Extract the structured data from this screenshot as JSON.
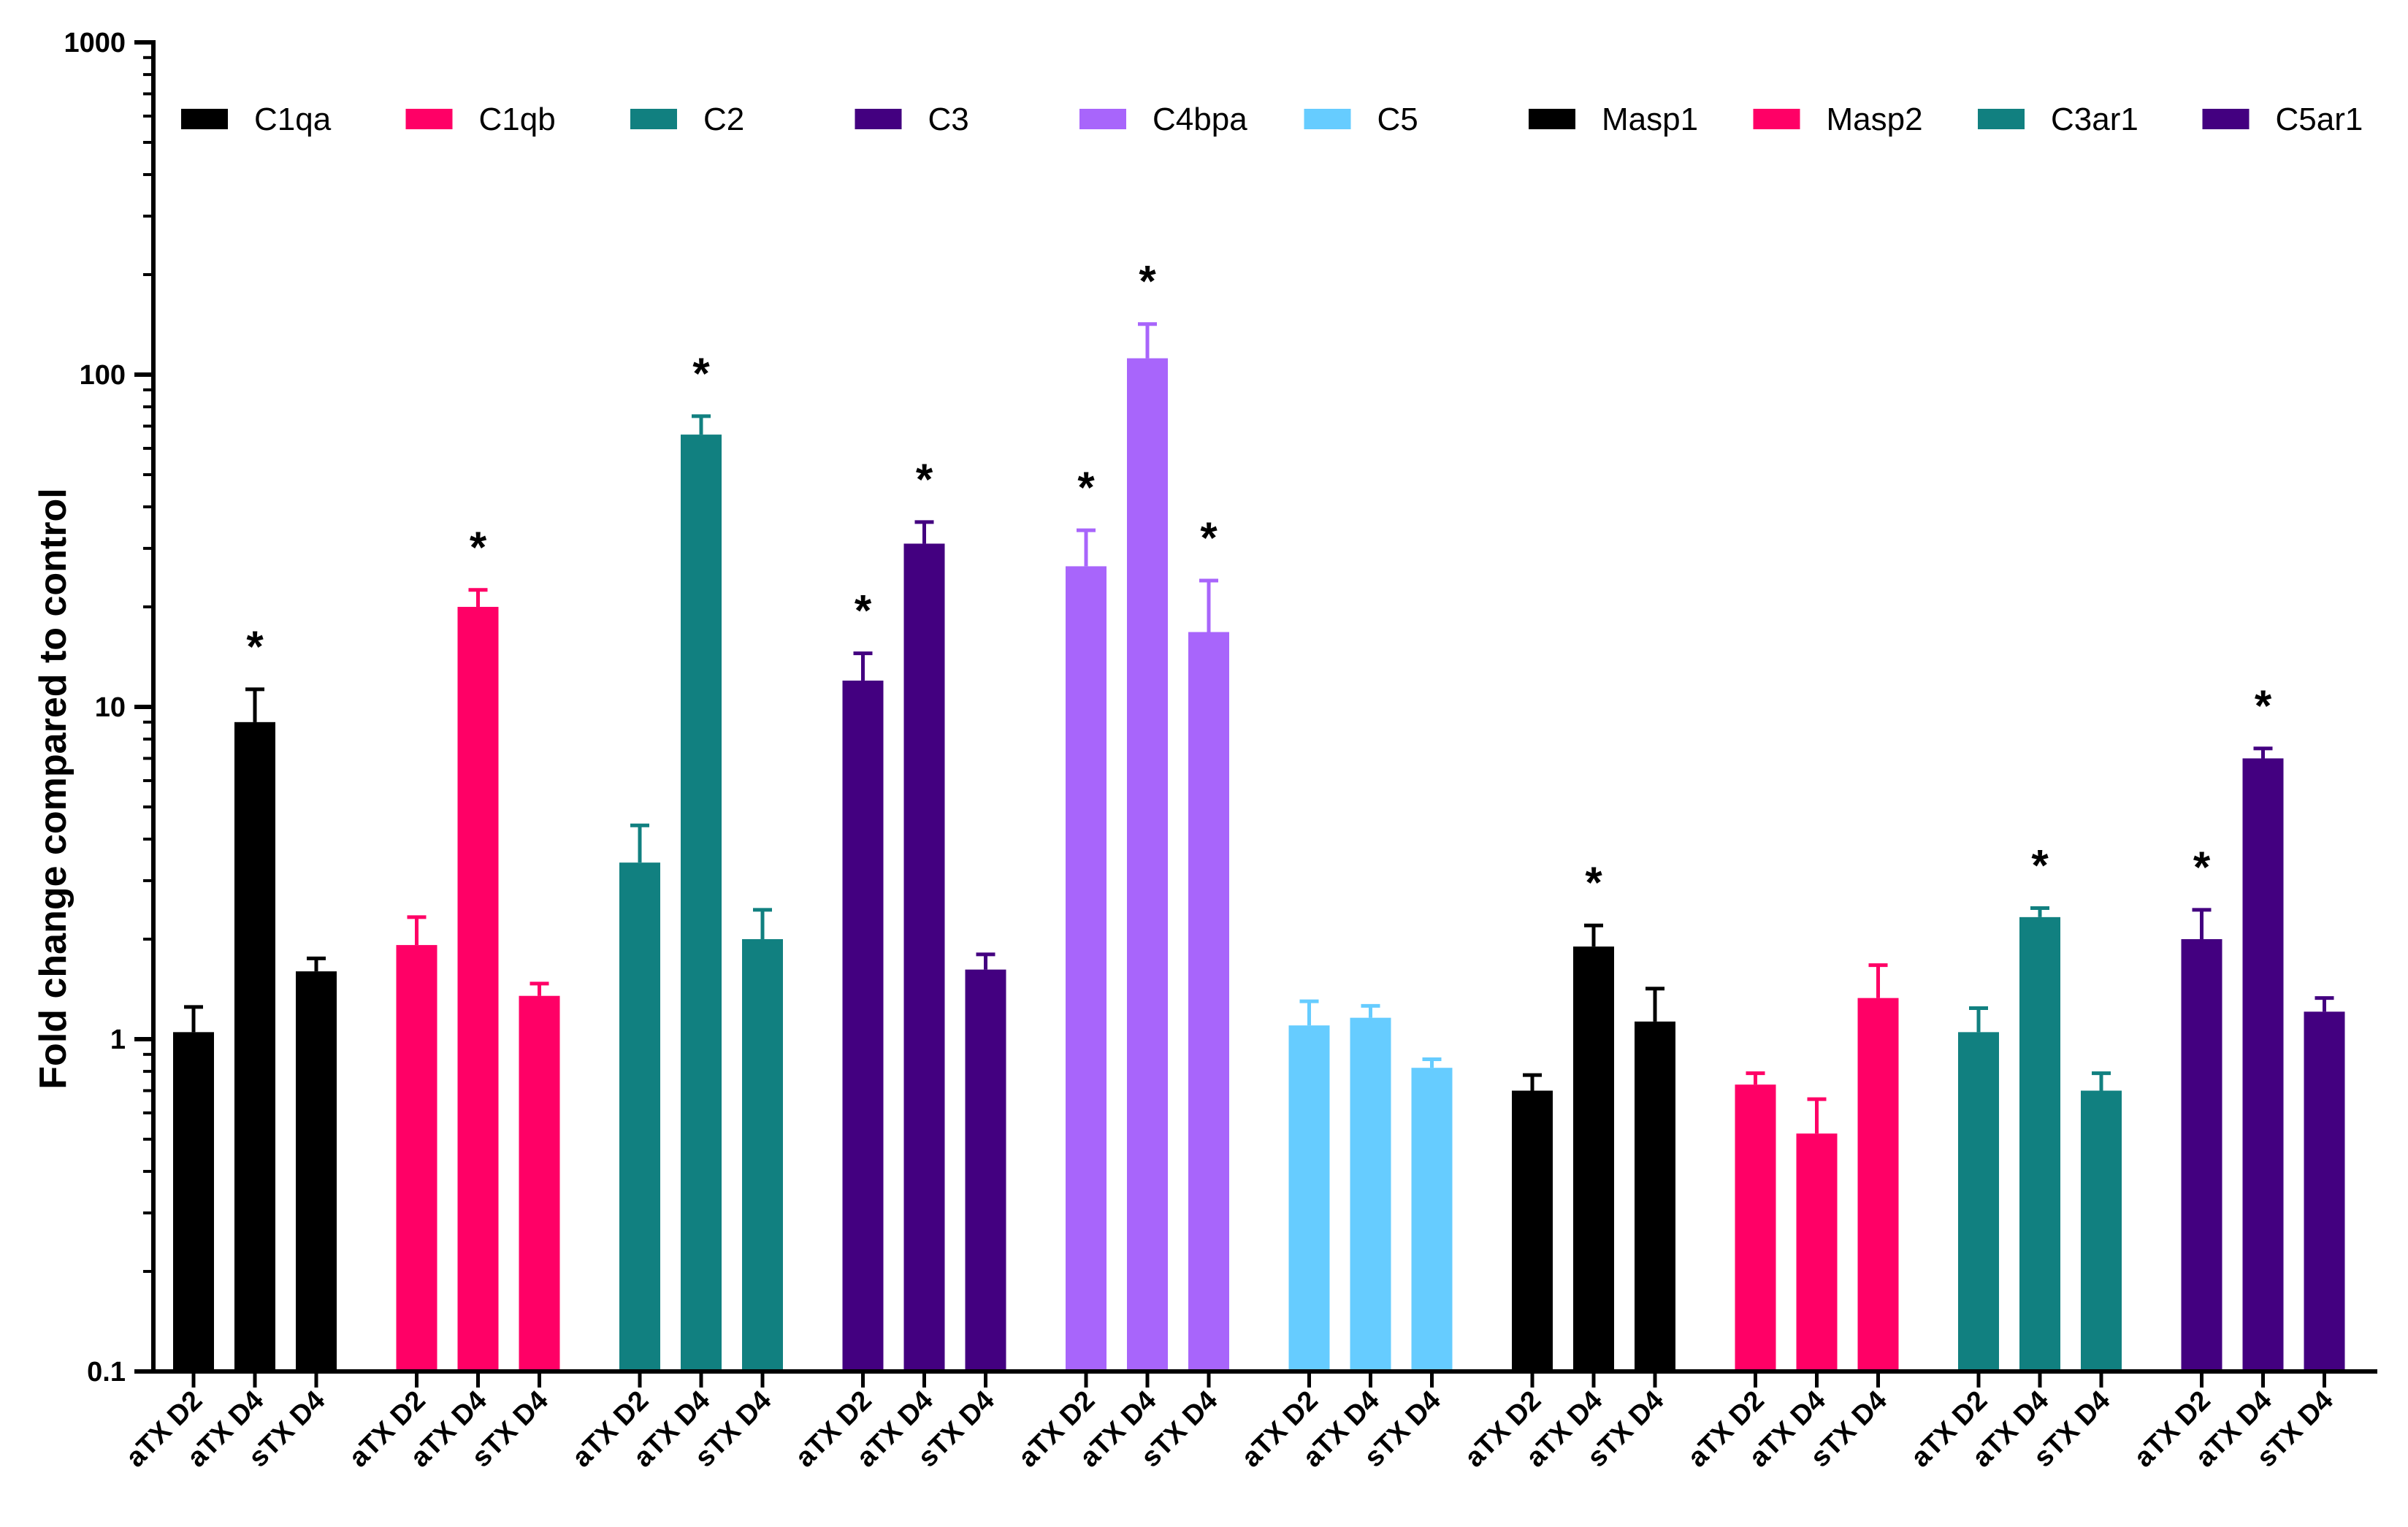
{
  "chart_data": {
    "type": "bar",
    "title": "",
    "xlabel": "",
    "ylabel": "Fold change compared to control",
    "yscale": "log",
    "ylim": [
      0.1,
      1000
    ],
    "yticks": [
      "0.1",
      "1",
      "10",
      "100",
      "1000"
    ],
    "conditions": [
      "aTX D2",
      "aTX D4",
      "sTX D4"
    ],
    "legend_position": "top",
    "series": [
      {
        "name": "C1qa",
        "color": "#000000",
        "values": [
          1.05,
          9.0,
          1.6
        ],
        "errors": [
          1.25,
          11.3,
          1.75
        ],
        "significant": [
          false,
          true,
          false
        ]
      },
      {
        "name": "C1qb",
        "color": "#ff0066",
        "values": [
          1.92,
          20.0,
          1.35
        ],
        "errors": [
          2.33,
          22.5,
          1.47
        ],
        "significant": [
          false,
          true,
          false
        ]
      },
      {
        "name": "C2",
        "color": "#118080",
        "values": [
          3.4,
          66.0,
          2.0
        ],
        "errors": [
          4.4,
          75.0,
          2.45
        ],
        "significant": [
          false,
          true,
          false
        ]
      },
      {
        "name": "C3",
        "color": "#430080",
        "values": [
          12.0,
          31.0,
          1.62
        ],
        "errors": [
          14.5,
          36.0,
          1.8
        ],
        "significant": [
          true,
          true,
          false
        ]
      },
      {
        "name": "C4bpa",
        "color": "#a865fb",
        "values": [
          26.5,
          112.0,
          16.8
        ],
        "errors": [
          34.0,
          142.0,
          24.0
        ],
        "significant": [
          true,
          true,
          true
        ]
      },
      {
        "name": "C5",
        "color": "#66ccff",
        "values": [
          1.1,
          1.16,
          0.82
        ],
        "errors": [
          1.3,
          1.26,
          0.87
        ],
        "significant": [
          false,
          false,
          false
        ]
      },
      {
        "name": "Masp1",
        "color": "#000000",
        "values": [
          0.7,
          1.9,
          1.13
        ],
        "errors": [
          0.78,
          2.2,
          1.42
        ],
        "significant": [
          false,
          true,
          false
        ]
      },
      {
        "name": "Masp2",
        "color": "#ff0066",
        "values": [
          0.73,
          0.52,
          1.33
        ],
        "errors": [
          0.79,
          0.66,
          1.67
        ],
        "significant": [
          false,
          false,
          false
        ]
      },
      {
        "name": "C3ar1",
        "color": "#118080",
        "values": [
          1.05,
          2.33,
          0.7
        ],
        "errors": [
          1.24,
          2.48,
          0.79
        ],
        "significant": [
          false,
          true,
          false
        ]
      },
      {
        "name": "C5ar1",
        "color": "#430080",
        "values": [
          2.0,
          7.0,
          1.21
        ],
        "errors": [
          2.45,
          7.5,
          1.33
        ],
        "significant": [
          true,
          true,
          false
        ]
      }
    ],
    "significance_marker": "*"
  }
}
